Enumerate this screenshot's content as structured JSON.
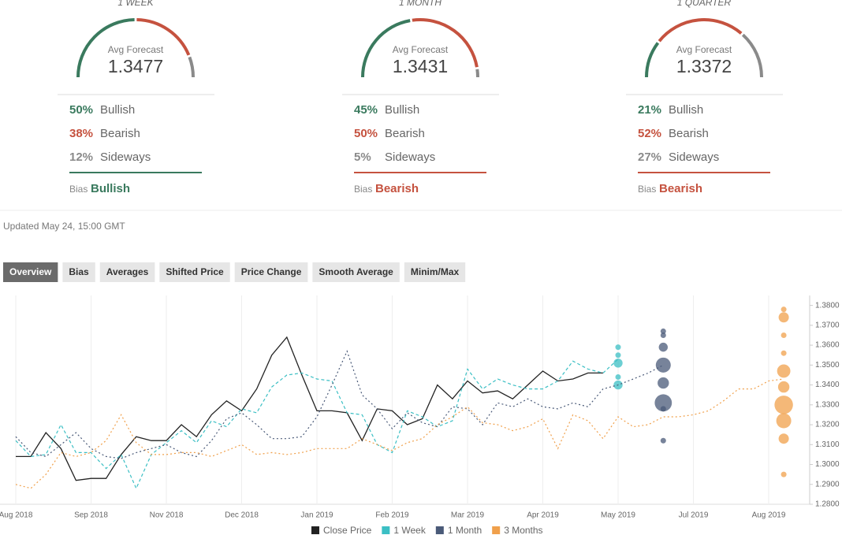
{
  "gauges": [
    {
      "period": "1 WEEK",
      "avg_label": "Avg Forecast",
      "avg": 1.3477,
      "rows": [
        {
          "pct": {
            "value": 50,
            "label": "50%"
          },
          "label": "Bullish",
          "color": "#3a7a5e"
        },
        {
          "pct": {
            "value": 38,
            "label": "38%"
          },
          "label": "Bearish",
          "color": "#c5523f"
        },
        {
          "pct": {
            "value": 12,
            "label": "12%"
          },
          "label": "Sideways",
          "color": "#8a8a8a"
        }
      ],
      "bias_label": "Bias",
      "bias": "Bullish",
      "bias_color": "#3a7a5e"
    },
    {
      "period": "1 MONTH",
      "avg_label": "Avg Forecast",
      "avg": 1.3431,
      "rows": [
        {
          "pct": {
            "value": 45,
            "label": "45%"
          },
          "label": "Bullish",
          "color": "#3a7a5e"
        },
        {
          "pct": {
            "value": 50,
            "label": "50%"
          },
          "label": "Bearish",
          "color": "#c5523f"
        },
        {
          "pct": {
            "value": 5,
            "label": "5%"
          },
          "label": "Sideways",
          "color": "#8a8a8a"
        }
      ],
      "bias_label": "Bias",
      "bias": "Bearish",
      "bias_color": "#c5523f"
    },
    {
      "period": "1 QUARTER",
      "avg_label": "Avg Forecast",
      "avg": 1.3372,
      "rows": [
        {
          "pct": {
            "value": 21,
            "label": "21%"
          },
          "label": "Bullish",
          "color": "#3a7a5e"
        },
        {
          "pct": {
            "value": 52,
            "label": "52%"
          },
          "label": "Bearish",
          "color": "#c5523f"
        },
        {
          "pct": {
            "value": 27,
            "label": "27%"
          },
          "label": "Sideways",
          "color": "#8a8a8a"
        }
      ],
      "bias_label": "Bias",
      "bias": "Bearish",
      "bias_color": "#c5523f"
    }
  ],
  "updated": "Updated May 24, 15:00 GMT",
  "tabs": [
    "Overview",
    "Bias",
    "Averages",
    "Shifted Price",
    "Price Change",
    "Smooth Average",
    "Minim/Max"
  ],
  "chart_data": {
    "type": "line",
    "categories": [
      "Aug 2018",
      null,
      null,
      null,
      null,
      "Sep 2018",
      null,
      null,
      null,
      null,
      "Nov 2018",
      null,
      null,
      null,
      null,
      "Dec 2018",
      null,
      null,
      null,
      null,
      "Jan 2019",
      null,
      null,
      null,
      null,
      "Feb 2019",
      null,
      null,
      null,
      null,
      "Mar 2019",
      null,
      null,
      null,
      null,
      "Apr 2019",
      null,
      null,
      null,
      null,
      "May 2019",
      null,
      null,
      null,
      null,
      "Jul 2019",
      null,
      null,
      null,
      null,
      "Aug 2019",
      null,
      null
    ],
    "ylim": [
      1.28,
      1.385
    ],
    "yticks": [
      {
        "value": 1.28,
        "label": "1.2800"
      },
      {
        "value": 1.29,
        "label": "1.2900"
      },
      {
        "value": 1.3,
        "label": "1.3000"
      },
      {
        "value": 1.31,
        "label": "1.3100"
      },
      {
        "value": 1.32,
        "label": "1.3200"
      },
      {
        "value": 1.33,
        "label": "1.3300"
      },
      {
        "value": 1.34,
        "label": "1.3400"
      },
      {
        "value": 1.35,
        "label": "1.3500"
      },
      {
        "value": 1.36,
        "label": "1.3600"
      },
      {
        "value": 1.37,
        "label": "1.3700"
      },
      {
        "value": 1.38,
        "label": "1.3800"
      }
    ],
    "grid": true,
    "series": [
      {
        "name": "Close Price",
        "color": "#222222",
        "style": "solid",
        "values": [
          1.304,
          1.304,
          1.316,
          1.308,
          1.292,
          1.293,
          1.293,
          1.305,
          1.314,
          1.312,
          1.312,
          1.32,
          1.314,
          1.325,
          1.332,
          1.327,
          1.338,
          1.355,
          1.364,
          1.345,
          1.327,
          1.327,
          1.326,
          1.312,
          1.328,
          1.327,
          1.32,
          1.323,
          1.34,
          1.333,
          1.342,
          1.336,
          1.337,
          1.333,
          1.34,
          1.347,
          1.342,
          1.343,
          1.346,
          1.346,
          null,
          null,
          null,
          null,
          null,
          null,
          null,
          null,
          null,
          null,
          null,
          null,
          null
        ]
      },
      {
        "name": "1 Week",
        "color": "#3bbfc4",
        "style": "dashed",
        "values": [
          1.312,
          1.304,
          1.305,
          1.32,
          1.306,
          1.306,
          1.298,
          1.305,
          1.288,
          1.305,
          1.311,
          1.317,
          1.311,
          1.322,
          1.319,
          1.328,
          1.326,
          1.339,
          1.345,
          1.346,
          1.343,
          1.342,
          1.326,
          1.325,
          1.31,
          1.306,
          1.327,
          1.324,
          1.319,
          1.322,
          1.348,
          1.338,
          1.343,
          1.34,
          1.338,
          1.338,
          1.342,
          1.352,
          1.348,
          1.346,
          1.353,
          null,
          null,
          null,
          null,
          null,
          null,
          null,
          null,
          null,
          null,
          null,
          null
        ],
        "forecast": {
          "x": 40,
          "values": [
            1.359,
            1.355,
            1.351,
            1.344,
            1.34
          ],
          "counts": [
            1,
            1,
            3,
            1,
            3
          ]
        }
      },
      {
        "name": "1 Month",
        "color": "#4a5a78",
        "style": "dotted",
        "values": [
          1.314,
          1.306,
          1.304,
          1.31,
          1.316,
          1.308,
          1.304,
          1.303,
          1.306,
          1.308,
          1.31,
          1.306,
          1.304,
          1.312,
          1.323,
          1.326,
          1.32,
          1.313,
          1.313,
          1.314,
          1.324,
          1.34,
          1.357,
          1.335,
          1.328,
          1.318,
          1.326,
          1.321,
          1.319,
          1.329,
          1.328,
          1.32,
          1.331,
          1.329,
          1.333,
          1.329,
          1.328,
          1.331,
          1.329,
          1.338,
          1.34,
          1.343,
          1.346,
          1.35,
          null,
          null,
          null,
          null,
          null,
          null,
          null,
          null,
          null
        ],
        "forecast": {
          "x": 43,
          "values": [
            1.367,
            1.365,
            1.359,
            1.35,
            1.341,
            1.331,
            1.328,
            1.312
          ],
          "counts": [
            1,
            1,
            3,
            9,
            5,
            12,
            1,
            1
          ]
        }
      },
      {
        "name": "3 Months",
        "color": "#f0a04b",
        "style": "dotted",
        "values": [
          1.29,
          1.288,
          1.295,
          1.306,
          1.304,
          1.306,
          1.312,
          1.325,
          1.311,
          1.305,
          1.305,
          1.306,
          1.306,
          1.304,
          1.307,
          1.31,
          1.305,
          1.306,
          1.305,
          1.306,
          1.308,
          1.308,
          1.308,
          1.313,
          1.31,
          1.307,
          1.311,
          1.313,
          1.32,
          1.324,
          1.329,
          1.321,
          1.32,
          1.317,
          1.319,
          1.323,
          1.308,
          1.325,
          1.322,
          1.313,
          1.324,
          1.319,
          1.32,
          1.324,
          1.324,
          1.325,
          1.327,
          1.332,
          1.338,
          1.338,
          1.342,
          1.343,
          null
        ],
        "forecast": {
          "x": 51,
          "values": [
            1.378,
            1.374,
            1.365,
            1.356,
            1.347,
            1.339,
            1.33,
            1.322,
            1.313,
            1.295
          ],
          "counts": [
            1,
            4,
            1,
            1,
            7,
            5,
            14,
            9,
            4,
            1
          ]
        }
      }
    ]
  }
}
